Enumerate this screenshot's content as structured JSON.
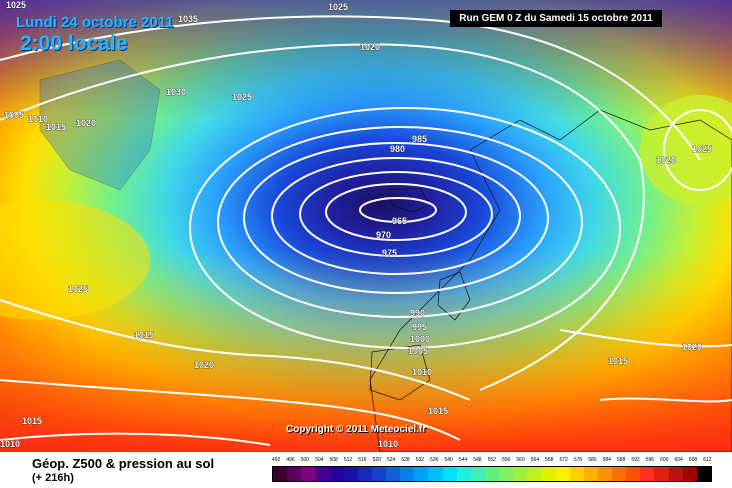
{
  "header": {
    "date_line": "Lundi 24 octobre 2011",
    "time_line": "2:00 locale",
    "run_info": "Run GEM 0 Z du Samedi 15 octobre 2011"
  },
  "footer": {
    "copyright": "Copyright © 2011 Meteociel.fr",
    "title": "Géop. Z500 & pression au sol",
    "forecast_hour": "(+ 216h)"
  },
  "legend": {
    "scale_values": [
      "492",
      "496",
      "500",
      "504",
      "508",
      "512",
      "516",
      "520",
      "524",
      "528",
      "532",
      "536",
      "540",
      "544",
      "548",
      "552",
      "556",
      "560",
      "564",
      "568",
      "572",
      "576",
      "580",
      "584",
      "588",
      "592",
      "596",
      "600",
      "604",
      "608",
      "612"
    ],
    "scale_colors": [
      "#3b0030",
      "#5e0060",
      "#800080",
      "#4a0090",
      "#2a00a0",
      "#1a10b0",
      "#1a28c0",
      "#1840d0",
      "#1060e0",
      "#0880f0",
      "#00a0ff",
      "#00c0ff",
      "#00e0ff",
      "#20f0e0",
      "#40f0b0",
      "#60f080",
      "#80f060",
      "#a0f040",
      "#c0f020",
      "#e0f000",
      "#fff000",
      "#ffd000",
      "#ffb000",
      "#ff9000",
      "#ff7000",
      "#ff5000",
      "#ff3020",
      "#e02010",
      "#c01010",
      "#a00000",
      "#000000"
    ]
  },
  "map": {
    "low_center_label": "965",
    "isobar_labels": [
      "1025",
      "1035",
      "1025",
      "1020",
      "1030",
      "1025",
      "1005",
      "1010",
      "1015",
      "1020",
      "985",
      "980",
      "965",
      "970",
      "975",
      "1020",
      "1025",
      "1025",
      "1015",
      "1020",
      "990",
      "995",
      "1000",
      "1005",
      "1010",
      "1015",
      "1015",
      "1020",
      "1010",
      "1015",
      "1010"
    ]
  }
}
